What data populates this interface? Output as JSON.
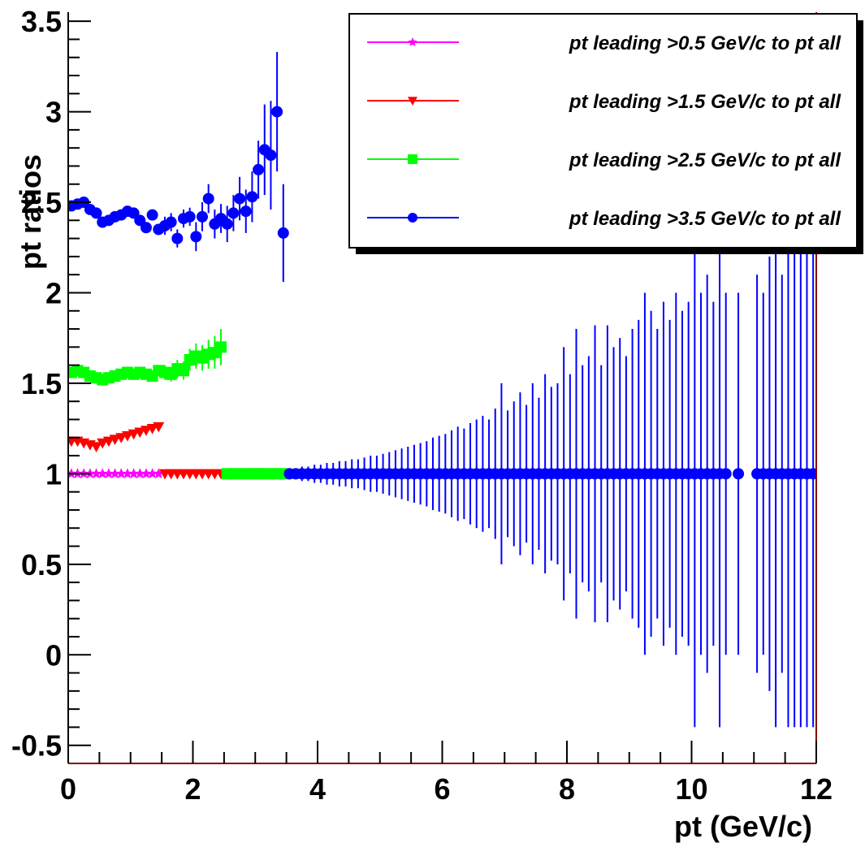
{
  "chart_data": {
    "type": "scatter",
    "x_label": "pt (GeV/c)",
    "y_label": "pt ratios",
    "xlim": [
      0,
      12
    ],
    "ylim": [
      -0.6,
      3.55
    ],
    "xticks": [
      0,
      2,
      4,
      6,
      8,
      10,
      12
    ],
    "yticks": [
      -0.5,
      0,
      0.5,
      1,
      1.5,
      2,
      2.5,
      3,
      3.5
    ],
    "series": [
      {
        "name": "pt leading >0.5 GeV/c to  pt all",
        "color": "#ff00ff",
        "marker": "star",
        "x": [
          0.05,
          0.15,
          0.25,
          0.35,
          0.45,
          0.55,
          0.65,
          0.75,
          0.85,
          0.95,
          1.05,
          1.15,
          1.25,
          1.35,
          1.45
        ],
        "values": [
          1,
          1,
          1,
          1,
          1,
          1,
          1,
          1,
          1,
          1,
          1,
          1,
          1,
          1,
          1
        ],
        "errors": [
          0.01,
          0.01,
          0.01,
          0.01,
          0.01,
          0.01,
          0.01,
          0.01,
          0.01,
          0.01,
          0.01,
          0.01,
          0.01,
          0.01,
          0.01
        ]
      },
      {
        "name": "pt leading >1.5 GeV/c to  pt all",
        "color": "#ff0000",
        "marker": "triangle-down",
        "x": [
          0.05,
          0.15,
          0.25,
          0.35,
          0.45,
          0.55,
          0.65,
          0.75,
          0.85,
          0.95,
          1.05,
          1.15,
          1.25,
          1.35,
          1.45,
          1.55,
          1.65,
          1.75,
          1.85,
          1.95,
          2.05,
          2.15,
          2.25,
          2.35,
          2.45
        ],
        "values": [
          1.18,
          1.18,
          1.17,
          1.16,
          1.15,
          1.17,
          1.18,
          1.19,
          1.2,
          1.21,
          1.22,
          1.23,
          1.24,
          1.25,
          1.26,
          1,
          1,
          1,
          1,
          1,
          1,
          1,
          1,
          1,
          1
        ],
        "errors": [
          0.01,
          0.01,
          0.01,
          0.01,
          0.01,
          0.01,
          0.01,
          0.01,
          0.01,
          0.01,
          0.01,
          0.01,
          0.01,
          0.01,
          0.01,
          0.01,
          0.01,
          0.01,
          0.01,
          0.01,
          0.01,
          0.01,
          0.01,
          0.01,
          0.01
        ]
      },
      {
        "name": "pt leading >2.5 GeV/c to  pt all",
        "color": "#00ff00",
        "marker": "square",
        "x": [
          0.05,
          0.15,
          0.25,
          0.35,
          0.45,
          0.55,
          0.65,
          0.75,
          0.85,
          0.95,
          1.05,
          1.15,
          1.25,
          1.35,
          1.45,
          1.55,
          1.65,
          1.75,
          1.85,
          1.95,
          2.05,
          2.15,
          2.25,
          2.35,
          2.45,
          2.55,
          2.65,
          2.75,
          2.85,
          2.95,
          3.05,
          3.15,
          3.25,
          3.35,
          3.45
        ],
        "values": [
          1.56,
          1.57,
          1.56,
          1.54,
          1.53,
          1.52,
          1.53,
          1.54,
          1.55,
          1.56,
          1.55,
          1.56,
          1.55,
          1.54,
          1.57,
          1.56,
          1.55,
          1.58,
          1.57,
          1.63,
          1.65,
          1.64,
          1.66,
          1.67,
          1.7,
          1,
          1,
          1,
          1,
          1,
          1,
          1,
          1,
          1,
          1
        ],
        "errors": [
          0.02,
          0.02,
          0.02,
          0.02,
          0.02,
          0.02,
          0.02,
          0.02,
          0.02,
          0.02,
          0.03,
          0.03,
          0.03,
          0.03,
          0.03,
          0.04,
          0.04,
          0.05,
          0.05,
          0.06,
          0.07,
          0.07,
          0.08,
          0.09,
          0.1,
          0.01,
          0.01,
          0.01,
          0.01,
          0.01,
          0.01,
          0.01,
          0.01,
          0.01,
          0.01
        ]
      },
      {
        "name": "pt leading >3.5 GeV/c to  pt all",
        "color": "#0000ff",
        "marker": "circle",
        "x": [
          0.05,
          0.15,
          0.25,
          0.35,
          0.45,
          0.55,
          0.65,
          0.75,
          0.85,
          0.95,
          1.05,
          1.15,
          1.25,
          1.35,
          1.45,
          1.55,
          1.65,
          1.75,
          1.85,
          1.95,
          2.05,
          2.15,
          2.25,
          2.35,
          2.45,
          2.55,
          2.65,
          2.75,
          2.85,
          2.95,
          3.05,
          3.15,
          3.25,
          3.35,
          3.45,
          3.55,
          3.65,
          3.75,
          3.85,
          3.95,
          4.05,
          4.15,
          4.25,
          4.35,
          4.45,
          4.55,
          4.65,
          4.75,
          4.85,
          4.95,
          5.05,
          5.15,
          5.25,
          5.35,
          5.45,
          5.55,
          5.65,
          5.75,
          5.85,
          5.95,
          6.05,
          6.15,
          6.25,
          6.35,
          6.45,
          6.55,
          6.65,
          6.75,
          6.85,
          6.95,
          7.05,
          7.15,
          7.25,
          7.35,
          7.45,
          7.55,
          7.65,
          7.75,
          7.85,
          7.95,
          8.05,
          8.15,
          8.25,
          8.35,
          8.45,
          8.55,
          8.65,
          8.75,
          8.85,
          8.95,
          9.05,
          9.15,
          9.25,
          9.35,
          9.45,
          9.55,
          9.65,
          9.75,
          9.85,
          9.95,
          10.05,
          10.15,
          10.25,
          10.35,
          10.45,
          10.55,
          10.65,
          10.75,
          10.85,
          10.95,
          11.05,
          11.15,
          11.25,
          11.35,
          11.45,
          11.55,
          11.65,
          11.75,
          11.85,
          11.95
        ],
        "values": [
          2.48,
          2.49,
          2.5,
          2.46,
          2.44,
          2.39,
          2.4,
          2.42,
          2.43,
          2.45,
          2.44,
          2.4,
          2.36,
          2.43,
          2.35,
          2.37,
          2.39,
          2.3,
          2.41,
          2.42,
          2.31,
          2.42,
          2.52,
          2.38,
          2.41,
          2.38,
          2.44,
          2.52,
          2.45,
          2.53,
          2.68,
          2.79,
          2.76,
          3,
          2.33,
          1,
          1,
          1,
          1,
          1,
          1,
          1,
          1,
          1,
          1,
          1,
          1,
          1,
          1,
          1,
          1,
          1,
          1,
          1,
          1,
          1,
          1,
          1,
          1,
          1,
          1,
          1,
          1,
          1,
          1,
          1,
          1,
          1,
          1,
          1,
          1,
          1,
          1,
          1,
          1,
          1,
          1,
          1,
          1,
          1,
          1,
          1,
          1,
          1,
          1,
          1,
          1,
          1,
          1,
          1,
          1,
          1,
          1,
          1,
          1,
          1,
          1,
          1,
          1,
          1,
          1,
          1,
          1,
          1,
          1,
          1,
          null,
          1,
          null,
          null,
          1,
          1,
          1,
          1,
          1,
          1,
          1,
          1,
          1,
          1
        ],
        "errors": [
          0.02,
          0.02,
          0.02,
          0.02,
          0.02,
          0.02,
          0.02,
          0.02,
          0.02,
          0.02,
          0.03,
          0.03,
          0.03,
          0.03,
          0.03,
          0.05,
          0.05,
          0.05,
          0.05,
          0.05,
          0.08,
          0.08,
          0.08,
          0.08,
          0.08,
          0.1,
          0.1,
          0.12,
          0.12,
          0.14,
          0.16,
          0.25,
          0.3,
          0.33,
          0.27,
          0.03,
          0.03,
          0.04,
          0.04,
          0.05,
          0.05,
          0.06,
          0.06,
          0.07,
          0.07,
          0.08,
          0.08,
          0.09,
          0.1,
          0.1,
          0.11,
          0.12,
          0.13,
          0.14,
          0.15,
          0.16,
          0.17,
          0.18,
          0.2,
          0.21,
          0.22,
          0.24,
          0.26,
          0.25,
          0.28,
          0.3,
          0.32,
          0.3,
          0.36,
          0.5,
          0.35,
          0.4,
          0.45,
          0.38,
          0.5,
          0.42,
          0.55,
          0.48,
          0.5,
          0.7,
          0.55,
          0.8,
          0.6,
          0.65,
          0.82,
          0.6,
          0.82,
          0.7,
          0.75,
          0.65,
          0.8,
          0.85,
          1,
          0.9,
          0.8,
          0.95,
          0.85,
          1,
          0.9,
          0.95,
          1.4,
          1,
          1.1,
          0.95,
          1.4,
          1,
          null,
          1,
          null,
          null,
          1.1,
          1,
          1.2,
          1.4,
          1.1,
          1.4,
          1.4,
          1.4,
          1.4,
          1.4
        ]
      }
    ]
  }
}
